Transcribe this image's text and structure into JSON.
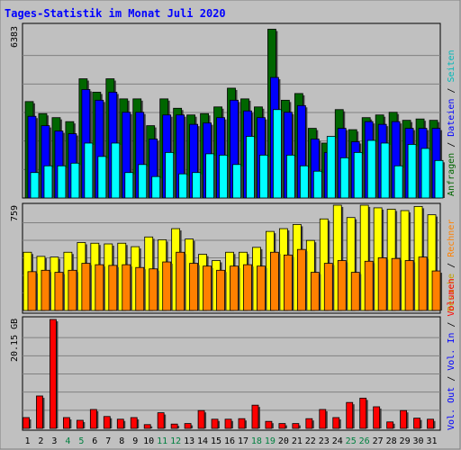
{
  "chart_data": [
    {
      "type": "bar",
      "title": "Tages-Statistik im Monat Juli 2020",
      "y_max_label": "6383",
      "y_max": 6383,
      "categories": [
        "1",
        "2",
        "3",
        "4",
        "5",
        "6",
        "7",
        "8",
        "9",
        "10",
        "11",
        "12",
        "13",
        "14",
        "15",
        "16",
        "17",
        "18",
        "19",
        "20",
        "21",
        "22",
        "23",
        "24",
        "25",
        "26",
        "27",
        "28",
        "29",
        "30",
        "31"
      ],
      "weekend_days": [
        "4",
        "5",
        "11",
        "12",
        "18",
        "19",
        "25",
        "26"
      ],
      "series": [
        {
          "name": "Anfragen",
          "color": "#006600",
          "values": [
            3600,
            3150,
            3000,
            2850,
            4450,
            3950,
            4450,
            3700,
            3700,
            2700,
            3700,
            3350,
            3100,
            3150,
            3400,
            4100,
            3700,
            3400,
            6300,
            3650,
            3900,
            2600,
            2050,
            3300,
            2550,
            3000,
            3100,
            3200,
            2900,
            2950,
            2900
          ]
        },
        {
          "name": "Dateien",
          "color": "#0000ff",
          "values": [
            3050,
            2700,
            2500,
            2400,
            4050,
            3650,
            3950,
            3200,
            3200,
            2200,
            3100,
            3100,
            2750,
            2800,
            3000,
            3650,
            3250,
            3000,
            4500,
            3200,
            3450,
            2200,
            1700,
            2600,
            2100,
            2850,
            2750,
            2850,
            2600,
            2600,
            2600
          ]
        },
        {
          "name": "Seiten",
          "color": "#00ffff",
          "values": [
            950,
            1200,
            1200,
            1300,
            2050,
            1550,
            2050,
            950,
            1250,
            800,
            1700,
            900,
            950,
            1650,
            1600,
            1250,
            2300,
            1600,
            3300,
            1600,
            1200,
            1000,
            2300,
            1500,
            1700,
            2150,
            2050,
            1200,
            2000,
            1850,
            1400
          ]
        }
      ]
    },
    {
      "type": "bar",
      "y_max_label": "759",
      "y_max": 759,
      "series": [
        {
          "name": "Besuche",
          "color": "#ffff00",
          "values": [
            420,
            390,
            385,
            420,
            490,
            485,
            480,
            485,
            460,
            530,
            510,
            590,
            515,
            405,
            360,
            420,
            420,
            455,
            570,
            590,
            620,
            505,
            660,
            759,
            670,
            759,
            740,
            730,
            720,
            750,
            690
          ]
        },
        {
          "name": "Rechner",
          "color": "#ff8000",
          "values": [
            280,
            290,
            275,
            290,
            340,
            330,
            325,
            330,
            310,
            300,
            350,
            420,
            340,
            320,
            290,
            320,
            330,
            320,
            420,
            400,
            440,
            275,
            340,
            360,
            275,
            355,
            380,
            375,
            360,
            385,
            285
          ]
        }
      ]
    },
    {
      "type": "bar",
      "y_max_label": "20.15 GB",
      "y_max": 20.15,
      "y_unit": "GB",
      "series": [
        {
          "name": "Volumen",
          "color": "#ff0000",
          "values": [
            2.0,
            6.0,
            20.15,
            2.0,
            1.5,
            3.5,
            2.2,
            1.7,
            2.0,
            0.7,
            2.9,
            0.8,
            0.9,
            3.3,
            1.7,
            1.7,
            1.8,
            4.3,
            1.3,
            0.9,
            0.9,
            1.8,
            3.5,
            2.0,
            4.8,
            5.6,
            4.0,
            1.2,
            3.3,
            1.9,
            1.7
          ]
        }
      ]
    }
  ],
  "legend_right": [
    {
      "label": "Anfragen",
      "color": "#006600"
    },
    {
      "label": "Dateien",
      "color": "#0000ff"
    },
    {
      "label": "Seiten",
      "color": "#00b8b8"
    },
    {
      "label": "Besuche",
      "color": "#c0a000"
    },
    {
      "label": "Rechner",
      "color": "#ff8000"
    },
    {
      "label": "Vol. Out",
      "color": "#0000ff"
    },
    {
      "label": "Vol. In",
      "color": "#0000ff"
    },
    {
      "label": "Volumen",
      "color": "#ff0000"
    }
  ],
  "colors": {
    "background": "#c0c0c0",
    "title": "#0000ff",
    "weekend": "#008040",
    "weekday": "#000000",
    "grid": "#808080"
  }
}
